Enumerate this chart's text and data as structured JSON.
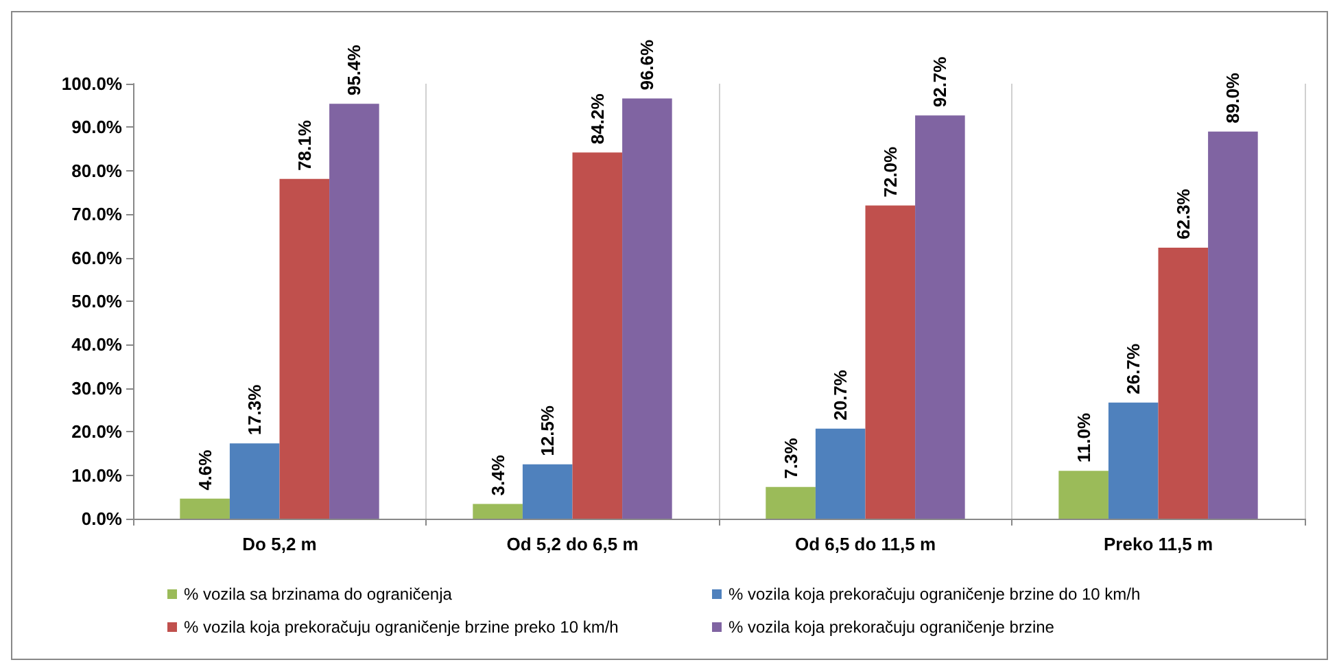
{
  "chart_data": {
    "type": "bar",
    "categories": [
      "Do 5,2 m",
      "Od 5,2 do 6,5 m",
      "Od 6,5 do 11,5 m",
      "Preko 11,5 m"
    ],
    "series": [
      {
        "name": "% vozila sa brzinama do ograničenja",
        "color": "#9bbb59",
        "values": [
          4.6,
          3.4,
          7.3,
          11.0
        ],
        "value_labels": [
          "4.6%",
          "3.4%",
          "7.3%",
          "11.0%"
        ]
      },
      {
        "name": "% vozila koja prekoračuju ograničenje brzine do 10 km/h",
        "color": "#4f81bd",
        "values": [
          17.3,
          12.5,
          20.7,
          26.7
        ],
        "value_labels": [
          "17.3%",
          "12.5%",
          "20.7%",
          "26.7%"
        ]
      },
      {
        "name": "% vozila koja prekoračuju ograničenje brzine preko 10 km/h",
        "color": "#c0504d",
        "values": [
          78.1,
          84.2,
          72.0,
          62.3
        ],
        "value_labels": [
          "78.1%",
          "84.2%",
          "72.0%",
          "62.3%"
        ]
      },
      {
        "name": "% vozila koja prekoračuju ograničenje brzine",
        "color": "#8064a2",
        "values": [
          95.4,
          96.6,
          92.7,
          89.0
        ],
        "value_labels": [
          "95.4%",
          "96.6%",
          "92.7%",
          "89.0%"
        ]
      }
    ],
    "ylim": [
      0,
      100
    ],
    "yticks": [
      {
        "value": 0,
        "label": "0.0%"
      },
      {
        "value": 10,
        "label": "10.0%"
      },
      {
        "value": 20,
        "label": "20.0%"
      },
      {
        "value": 30,
        "label": "30.0%"
      },
      {
        "value": 40,
        "label": "40.0%"
      },
      {
        "value": 50,
        "label": "50.0%"
      },
      {
        "value": 60,
        "label": "60.0%"
      },
      {
        "value": 70,
        "label": "70.0%"
      },
      {
        "value": 80,
        "label": "80.0%"
      },
      {
        "value": 90,
        "label": "90.0%"
      },
      {
        "value": 100,
        "label": "100.0%"
      }
    ],
    "grid": "x",
    "legend": "bottom"
  }
}
